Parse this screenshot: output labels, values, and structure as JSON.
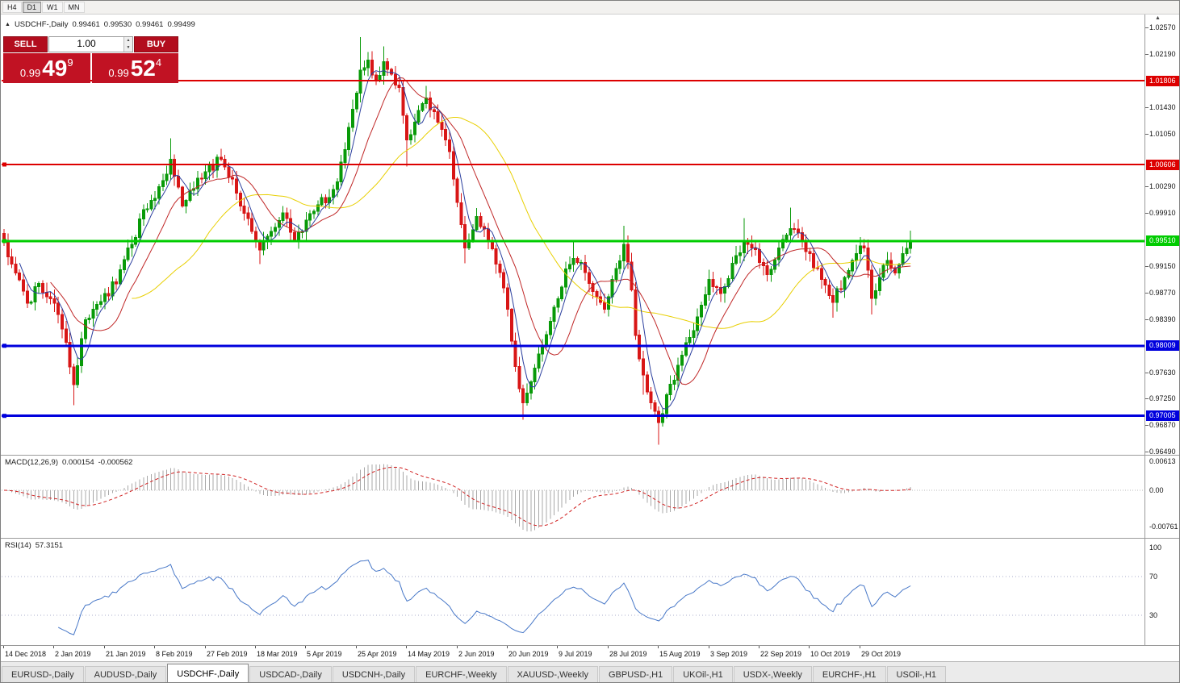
{
  "toolbar": {
    "timeframes": [
      {
        "label": "H4"
      },
      {
        "label": "D1"
      },
      {
        "label": "W1"
      },
      {
        "label": "MN"
      }
    ],
    "active": "D1"
  },
  "chart_header": {
    "expand_icon": "▲",
    "symbol_title": "USDCHF-,Daily",
    "open": "0.99461",
    "high": "0.99530",
    "low": "0.99461",
    "close": "0.99499"
  },
  "misc": {
    "corner_arrow": "▲"
  },
  "trade_panel": {
    "sell_label": "SELL",
    "buy_label": "BUY",
    "volume": "1.00",
    "spin_up": "▲",
    "spin_down": "▼",
    "sell_price": {
      "prefix": "0.99",
      "big": "49",
      "sup": "9"
    },
    "buy_price": {
      "prefix": "0.99",
      "big": "52",
      "sup": "4"
    }
  },
  "chart_data": {
    "type": "candlestick",
    "symbol": "USDCHF",
    "timeframe": "Daily",
    "bar_count": 235,
    "bars_per_label": 13,
    "colors": {
      "up": "#089a08",
      "down": "#d81616"
    },
    "price_axis": {
      "max": 1.0257,
      "min": 0.9647,
      "ticks": [
        "1.02570",
        "1.02190",
        "1.01430",
        "1.01050",
        "1.00290",
        "0.99910",
        "0.99150",
        "0.98770",
        "0.98390",
        "0.97630",
        "0.97250",
        "0.96870",
        "0.96490"
      ]
    },
    "date_labels": [
      "14 Dec 2018",
      "2 Jan 2019",
      "21 Jan 2019",
      "8 Feb 2019",
      "27 Feb 2019",
      "18 Mar 2019",
      "5 Apr 2019",
      "25 Apr 2019",
      "14 May 2019",
      "2 Jun 2019",
      "20 Jun 2019",
      "9 Jul 2019",
      "28 Jul 2019",
      "15 Aug 2019",
      "3 Sep 2019",
      "22 Sep 2019",
      "10 Oct 2019",
      "29 Oct 2019"
    ],
    "hlines": [
      {
        "price": 1.01806,
        "label": "1.01806",
        "color": "#dd0000",
        "width": 2,
        "handle": false
      },
      {
        "price": 1.00606,
        "label": "1.00606",
        "color": "#dd0000",
        "width": 2,
        "handle": true
      },
      {
        "price": 0.9951,
        "label": "0.99510",
        "color": "#00cc00",
        "width": 3,
        "handle": true
      },
      {
        "price": 0.98009,
        "label": "0.98009",
        "color": "#0000dd",
        "width": 3,
        "handle": true
      },
      {
        "price": 0.97005,
        "label": "0.97005",
        "color": "#0000dd",
        "width": 3,
        "handle": true
      }
    ],
    "moving_averages": [
      {
        "period": 34,
        "color": "#e8cf00"
      },
      {
        "period": 13,
        "color": "#c02828"
      },
      {
        "period": 5,
        "color": "#2b3f9e"
      }
    ],
    "macd": {
      "label": "MACD(12,26,9)",
      "value": "0.000154",
      "signal_value": "-0.000562",
      "fast": 12,
      "slow": 26,
      "signal": 9,
      "axis_labels": [
        "0.00613",
        "0.00",
        "-0.00761"
      ],
      "histogram_color": "#a8a8a8",
      "signal_color": "#d02020"
    },
    "rsi": {
      "label": "RSI(14)",
      "value": "57.3151",
      "period": 14,
      "levels": [
        70,
        30
      ],
      "axis_labels": [
        "100",
        "70",
        "30"
      ],
      "line_color": "#4878c8"
    },
    "pivots": [
      [
        0,
        0.995,
        0.9968,
        null
      ],
      [
        3,
        0.9905,
        null,
        null
      ],
      [
        6,
        0.9862,
        null,
        null
      ],
      [
        9,
        0.989,
        null,
        null
      ],
      [
        12,
        0.9868,
        null,
        null
      ],
      [
        14,
        0.9846,
        null,
        null
      ],
      [
        16,
        0.9806,
        null,
        null
      ],
      [
        18,
        0.9745,
        null,
        0.9716
      ],
      [
        21,
        0.9838,
        null,
        null
      ],
      [
        24,
        0.986,
        null,
        null
      ],
      [
        27,
        0.9872,
        null,
        null
      ],
      [
        30,
        0.991,
        null,
        null
      ],
      [
        33,
        0.9946,
        null,
        null
      ],
      [
        36,
        0.9996,
        null,
        null
      ],
      [
        39,
        1.0012,
        null,
        null
      ],
      [
        43,
        1.0068,
        1.0098,
        null
      ],
      [
        46,
        1.0001,
        null,
        null
      ],
      [
        49,
        1.0026,
        null,
        null
      ],
      [
        52,
        1.005,
        null,
        null
      ],
      [
        56,
        1.0068,
        1.0083,
        null
      ],
      [
        59,
        1.004,
        null,
        null
      ],
      [
        62,
        0.9991,
        null,
        null
      ],
      [
        66,
        0.9938,
        null,
        0.9918
      ],
      [
        69,
        0.9965,
        null,
        null
      ],
      [
        72,
        0.9991,
        null,
        null
      ],
      [
        75,
        0.9953,
        null,
        null
      ],
      [
        78,
        0.9981,
        null,
        null
      ],
      [
        81,
        1.0003,
        null,
        null
      ],
      [
        84,
        1.0013,
        null,
        null
      ],
      [
        86,
        1.0036,
        null,
        null
      ],
      [
        88,
        1.0082,
        null,
        null
      ],
      [
        90,
        1.014,
        null,
        null
      ],
      [
        92,
        1.0196,
        1.0243,
        null
      ],
      [
        94,
        1.021,
        null,
        null
      ],
      [
        96,
        1.0181,
        null,
        null
      ],
      [
        98,
        1.0208,
        1.023,
        null
      ],
      [
        100,
        1.019,
        null,
        null
      ],
      [
        102,
        1.0171,
        null,
        null
      ],
      [
        104,
        1.0096,
        null,
        1.0058
      ],
      [
        106,
        1.0121,
        null,
        null
      ],
      [
        109,
        1.0156,
        1.0173,
        null
      ],
      [
        112,
        1.0121,
        null,
        null
      ],
      [
        115,
        1.0079,
        null,
        null
      ],
      [
        117,
        1.0006,
        null,
        null
      ],
      [
        119,
        0.9941,
        null,
        0.9919
      ],
      [
        122,
        0.9986,
        null,
        null
      ],
      [
        125,
        0.9951,
        null,
        null
      ],
      [
        128,
        0.9906,
        null,
        null
      ],
      [
        130,
        0.9853,
        null,
        null
      ],
      [
        132,
        0.9771,
        null,
        null
      ],
      [
        134,
        0.9719,
        null,
        0.9695
      ],
      [
        136,
        0.9749,
        null,
        null
      ],
      [
        139,
        0.9801,
        null,
        null
      ],
      [
        142,
        0.9856,
        null,
        null
      ],
      [
        145,
        0.9911,
        null,
        null
      ],
      [
        147,
        0.9926,
        0.9949,
        null
      ],
      [
        150,
        0.9906,
        null,
        null
      ],
      [
        153,
        0.9871,
        null,
        null
      ],
      [
        155,
        0.9853,
        null,
        null
      ],
      [
        157,
        0.9896,
        null,
        null
      ],
      [
        160,
        0.9946,
        0.9973,
        null
      ],
      [
        162,
        0.9881,
        null,
        null
      ],
      [
        163,
        0.9816,
        null,
        null
      ],
      [
        165,
        0.9759,
        null,
        0.9731
      ],
      [
        167,
        0.9719,
        null,
        null
      ],
      [
        169,
        0.9691,
        null,
        0.9659
      ],
      [
        171,
        0.9731,
        null,
        null
      ],
      [
        174,
        0.9773,
        null,
        null
      ],
      [
        177,
        0.9813,
        null,
        null
      ],
      [
        180,
        0.9859,
        null,
        null
      ],
      [
        182,
        0.9896,
        null,
        null
      ],
      [
        185,
        0.9876,
        null,
        null
      ],
      [
        188,
        0.9919,
        null,
        null
      ],
      [
        191,
        0.9949,
        0.9984,
        null
      ],
      [
        194,
        0.9939,
        null,
        null
      ],
      [
        197,
        0.9903,
        null,
        null
      ],
      [
        200,
        0.9941,
        null,
        null
      ],
      [
        203,
        0.9969,
        0.9999,
        null
      ],
      [
        206,
        0.9951,
        null,
        null
      ],
      [
        208,
        0.9933,
        null,
        null
      ],
      [
        211,
        0.9896,
        null,
        null
      ],
      [
        214,
        0.9863,
        null,
        0.9841
      ],
      [
        217,
        0.9899,
        null,
        null
      ],
      [
        220,
        0.9933,
        null,
        null
      ],
      [
        222,
        0.9941,
        null,
        null
      ],
      [
        224,
        0.9869,
        null,
        0.9846
      ],
      [
        226,
        0.9899,
        null,
        null
      ],
      [
        228,
        0.9923,
        null,
        null
      ],
      [
        230,
        0.9905,
        null,
        null
      ],
      [
        232,
        0.9933,
        null,
        null
      ],
      [
        234,
        0.995,
        0.9966,
        null
      ]
    ]
  },
  "tabs": {
    "active_index": 2,
    "items": [
      {
        "label": "EURUSD-,Daily"
      },
      {
        "label": "AUDUSD-,Daily"
      },
      {
        "label": "USDCHF-,Daily"
      },
      {
        "label": "USDCAD-,Daily"
      },
      {
        "label": "USDCNH-,Daily"
      },
      {
        "label": "EURCHF-,Weekly"
      },
      {
        "label": "XAUUSD-,Weekly"
      },
      {
        "label": "GBPUSD-,H1"
      },
      {
        "label": "UKOil-,H1"
      },
      {
        "label": "USDX-,Weekly"
      },
      {
        "label": "EURCHF-,H1"
      },
      {
        "label": "USOil-,H1"
      }
    ]
  }
}
